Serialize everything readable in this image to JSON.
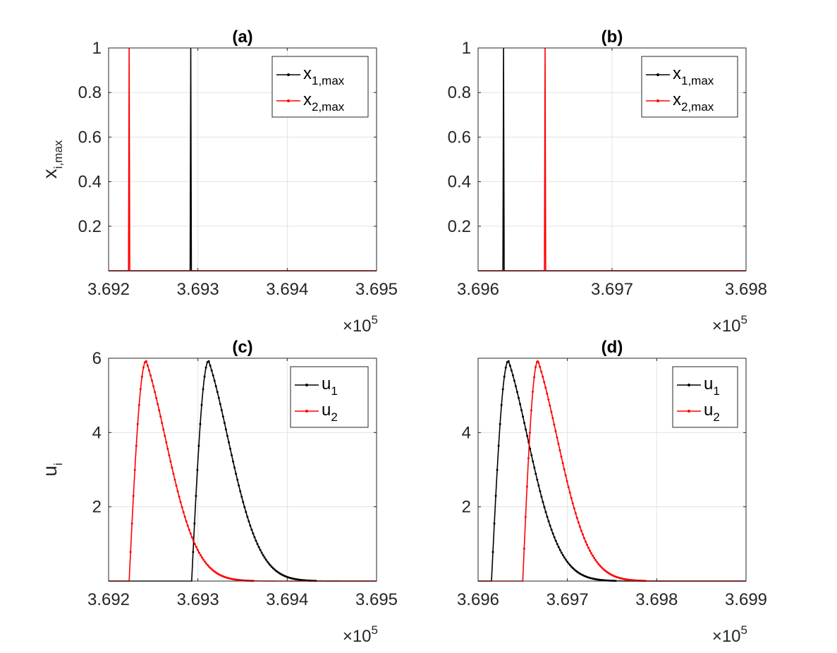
{
  "chart_data": [
    {
      "type": "line",
      "title": "(a)",
      "ylabel": {
        "base": "x",
        "sub": "i,max"
      },
      "xlim": [
        369200,
        369500
      ],
      "ylim": [
        0,
        1
      ],
      "xticks": [
        369200,
        369300,
        369400,
        369500
      ],
      "xtick_labels": [
        "3.692",
        "3.693",
        "3.694",
        "3.695"
      ],
      "yticks": [
        0.2,
        0.4,
        0.6,
        0.8,
        1
      ],
      "ytick_labels": [
        "0.2",
        "0.4",
        "0.6",
        "0.8",
        "1"
      ],
      "x_exponent": {
        "times": "×10",
        "power": "5"
      },
      "legend_position": "top-right",
      "series": [
        {
          "name": "x",
          "sub": "1,max",
          "color": "#000000",
          "kind": "spike",
          "peak_x": 369292,
          "peak_y": 1
        },
        {
          "name": "x",
          "sub": "2,max",
          "color": "#ff0000",
          "kind": "spike",
          "peak_x": 369223,
          "peak_y": 1
        }
      ]
    },
    {
      "type": "line",
      "title": "(b)",
      "ylabel": null,
      "xlim": [
        369600,
        369800
      ],
      "ylim": [
        0,
        1
      ],
      "xticks": [
        369600,
        369700,
        369800
      ],
      "xtick_labels": [
        "3.696",
        "3.697",
        "3.698"
      ],
      "yticks": [
        0.2,
        0.4,
        0.6,
        0.8,
        1
      ],
      "ytick_labels": [
        "0.2",
        "0.4",
        "0.6",
        "0.8",
        "1"
      ],
      "x_exponent": {
        "times": "×10",
        "power": "5"
      },
      "legend_position": "top-right",
      "series": [
        {
          "name": "x",
          "sub": "1,max",
          "color": "#000000",
          "kind": "spike",
          "peak_x": 369619,
          "peak_y": 1
        },
        {
          "name": "x",
          "sub": "2,max",
          "color": "#ff0000",
          "kind": "spike",
          "peak_x": 369650,
          "peak_y": 1
        }
      ]
    },
    {
      "type": "line",
      "title": "(c)",
      "ylabel": {
        "base": "u",
        "sub": "i"
      },
      "xlim": [
        369200,
        369500
      ],
      "ylim": [
        0,
        6
      ],
      "xticks": [
        369200,
        369300,
        369400,
        369500
      ],
      "xtick_labels": [
        "3.692",
        "3.693",
        "3.694",
        "3.695"
      ],
      "yticks": [
        2,
        4,
        6
      ],
      "ytick_labels": [
        "2",
        "4",
        "6"
      ],
      "x_exponent": {
        "times": "×10",
        "power": "5"
      },
      "legend_position": "top-right",
      "series": [
        {
          "name": "u",
          "sub": "1",
          "color": "#000000",
          "kind": "pulse",
          "onset_x": 369293,
          "peak_x": 369312,
          "peak_y": 5.93,
          "decay": 38
        },
        {
          "name": "u",
          "sub": "2",
          "color": "#ff0000",
          "kind": "pulse",
          "onset_x": 369223,
          "peak_x": 369242,
          "peak_y": 5.93,
          "decay": 38
        }
      ]
    },
    {
      "type": "line",
      "title": "(d)",
      "ylabel": null,
      "xlim": [
        369600,
        369900
      ],
      "ylim": [
        0,
        6
      ],
      "xticks": [
        369600,
        369700,
        369800,
        369900
      ],
      "xtick_labels": [
        "3.696",
        "3.697",
        "3.698",
        "3.699"
      ],
      "yticks": [
        2,
        4
      ],
      "ytick_labels": [
        "2",
        "4"
      ],
      "x_exponent": {
        "times": "×10",
        "power": "5"
      },
      "legend_position": "top-right",
      "series": [
        {
          "name": "u",
          "sub": "1",
          "color": "#000000",
          "kind": "pulse",
          "onset_x": 369615,
          "peak_x": 369634,
          "peak_y": 5.93,
          "decay": 38
        },
        {
          "name": "u",
          "sub": "2",
          "color": "#ff0000",
          "kind": "pulse",
          "onset_x": 369650,
          "peak_x": 369667,
          "peak_y": 5.93,
          "decay": 38
        }
      ]
    }
  ]
}
